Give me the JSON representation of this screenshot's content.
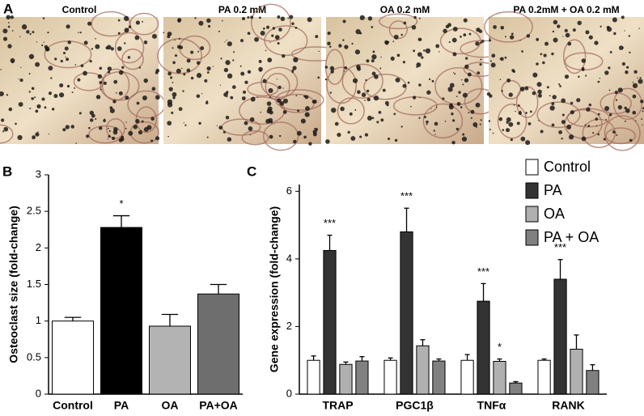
{
  "panel_labels": [
    "A",
    "B",
    "C"
  ],
  "images": [
    "Control",
    "PA 0.2 mM",
    "OA 0.2 mM",
    "PA 0.2mM + OA 0.2 mM"
  ],
  "chart_data": [
    {
      "type": "bar",
      "y_label": "Osteoclast size (fold-change)",
      "categories": [
        "Control",
        "PA",
        "OA",
        "PA+OA"
      ],
      "values": [
        1.0,
        2.28,
        0.93,
        1.37
      ],
      "errors": [
        0.05,
        0.16,
        0.16,
        0.13
      ],
      "colors": [
        "#ffffff",
        "#000000",
        "#b3b3b3",
        "#6e6e6e"
      ],
      "significance": [
        null,
        "*",
        null,
        null
      ],
      "ylim": [
        0,
        3
      ],
      "yticks": [
        0,
        0.5,
        1,
        1.5,
        2,
        2.5,
        3
      ]
    },
    {
      "type": "bar",
      "y_label": "Gene expression (fold-change)",
      "categories": [
        "TRAP",
        "PGC1β",
        "TNFα",
        "RANK"
      ],
      "series": [
        {
          "name": "Control",
          "color": "#ffffff",
          "values": [
            1.0,
            1.0,
            1.0,
            1.0
          ],
          "errors": [
            0.13,
            0.07,
            0.17,
            0.04
          ],
          "significance": [
            null,
            null,
            null,
            null
          ]
        },
        {
          "name": "PA",
          "color": "#333333",
          "values": [
            4.25,
            4.8,
            2.75,
            3.4
          ],
          "errors": [
            0.45,
            0.7,
            0.52,
            0.58
          ],
          "significance": [
            "***",
            "***",
            "***",
            "***"
          ]
        },
        {
          "name": "OA",
          "color": "#b0b0b0",
          "values": [
            0.88,
            1.43,
            0.97,
            1.33
          ],
          "errors": [
            0.07,
            0.18,
            0.07,
            0.42
          ],
          "significance": [
            null,
            null,
            "*",
            null
          ]
        },
        {
          "name": "PA + OA",
          "color": "#808080",
          "values": [
            0.98,
            0.98,
            0.33,
            0.7
          ],
          "errors": [
            0.13,
            0.06,
            0.04,
            0.17
          ],
          "significance": [
            null,
            null,
            null,
            null
          ]
        }
      ],
      "legend": "upper right",
      "ylim": [
        0,
        6.2
      ],
      "yticks": [
        0,
        2,
        4,
        6
      ]
    }
  ]
}
